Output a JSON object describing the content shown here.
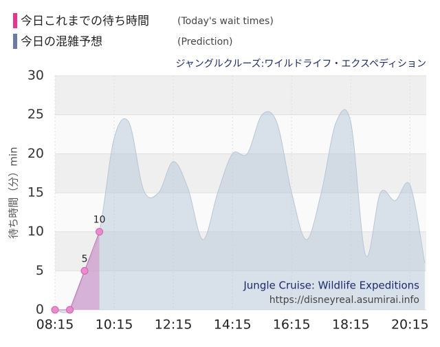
{
  "chart_data": {
    "type": "area",
    "title": "ジャングルクルーズ:ワイルドライフ・エクスペディション",
    "y_label": "待ち時間（分）min",
    "annotations": [
      "Jungle Cruise: Wildlife Expeditions",
      "https://disneyreal.asumirai.info"
    ],
    "series": [
      {
        "name": "今日これまでの待ち時間",
        "note": "(Today's wait times)",
        "color": "#e8338f",
        "x": [
          8.25,
          8.75,
          9.25,
          9.75
        ],
        "values": [
          0,
          0,
          5,
          10
        ]
      },
      {
        "name": "今日の混雑予想",
        "note": "(Prediction)",
        "color": "#6a7ba3",
        "x": [
          8.25,
          8.75,
          9.25,
          9.75,
          10.25,
          10.75,
          11.25,
          11.75,
          12.25,
          12.75,
          13.25,
          13.75,
          14.25,
          14.75,
          15.25,
          15.75,
          16.25,
          16.75,
          17.25,
          17.75,
          18.25,
          18.75,
          19.25,
          19.75,
          20.25,
          20.75
        ],
        "values": [
          0,
          0,
          5,
          10,
          22,
          24,
          15.3,
          15,
          19,
          15.5,
          9,
          15,
          20,
          20,
          25,
          24,
          15,
          9,
          15,
          24,
          24,
          7,
          15,
          14,
          16,
          6
        ]
      }
    ],
    "xlim": [
      8.25,
      20.8
    ],
    "xticks": [
      {
        "value": 8.25,
        "label": "08:15"
      },
      {
        "value": 10.25,
        "label": "10:15"
      },
      {
        "value": 12.25,
        "label": "12:15"
      },
      {
        "value": 14.25,
        "label": "14:15"
      },
      {
        "value": 16.25,
        "label": "16:15"
      },
      {
        "value": 18.25,
        "label": "18:15"
      },
      {
        "value": 20.25,
        "label": "20:15"
      }
    ],
    "ylim": [
      0,
      30
    ],
    "yticks": [
      0,
      5,
      10,
      15,
      20,
      25,
      30
    ],
    "grid": true
  }
}
